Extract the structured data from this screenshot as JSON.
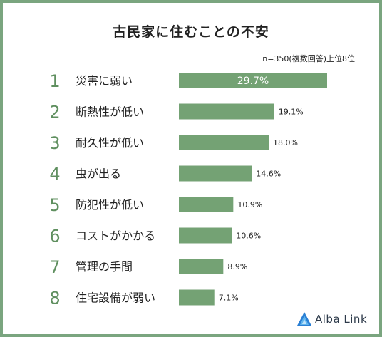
{
  "chart_data": {
    "type": "bar",
    "orientation": "horizontal",
    "title": "古民家に住むことの不安",
    "note": "n=350(複数回答)上位8位",
    "ranks": [
      "1",
      "2",
      "3",
      "4",
      "5",
      "6",
      "7",
      "8"
    ],
    "categories": [
      "災害に弱い",
      "断熱性が低い",
      "耐久性が低い",
      "虫が出る",
      "防犯性が低い",
      "コストがかかる",
      "管理の手間",
      "住宅設備が弱い"
    ],
    "values": [
      29.7,
      19.1,
      18.0,
      14.6,
      10.9,
      10.6,
      8.9,
      7.1
    ],
    "value_labels": [
      "29.7%",
      "19.1%",
      "18.0%",
      "14.6%",
      "10.9%",
      "10.6%",
      "8.9%",
      "7.1%"
    ],
    "xlim": [
      0,
      29.7
    ],
    "grid": false,
    "colors": {
      "bar": "#74a274",
      "rank": "#5f8f5f",
      "frame": "#7aa57f"
    }
  },
  "brand": {
    "name": "Alba Link",
    "logo_icon": "alba-link-logo-icon"
  }
}
